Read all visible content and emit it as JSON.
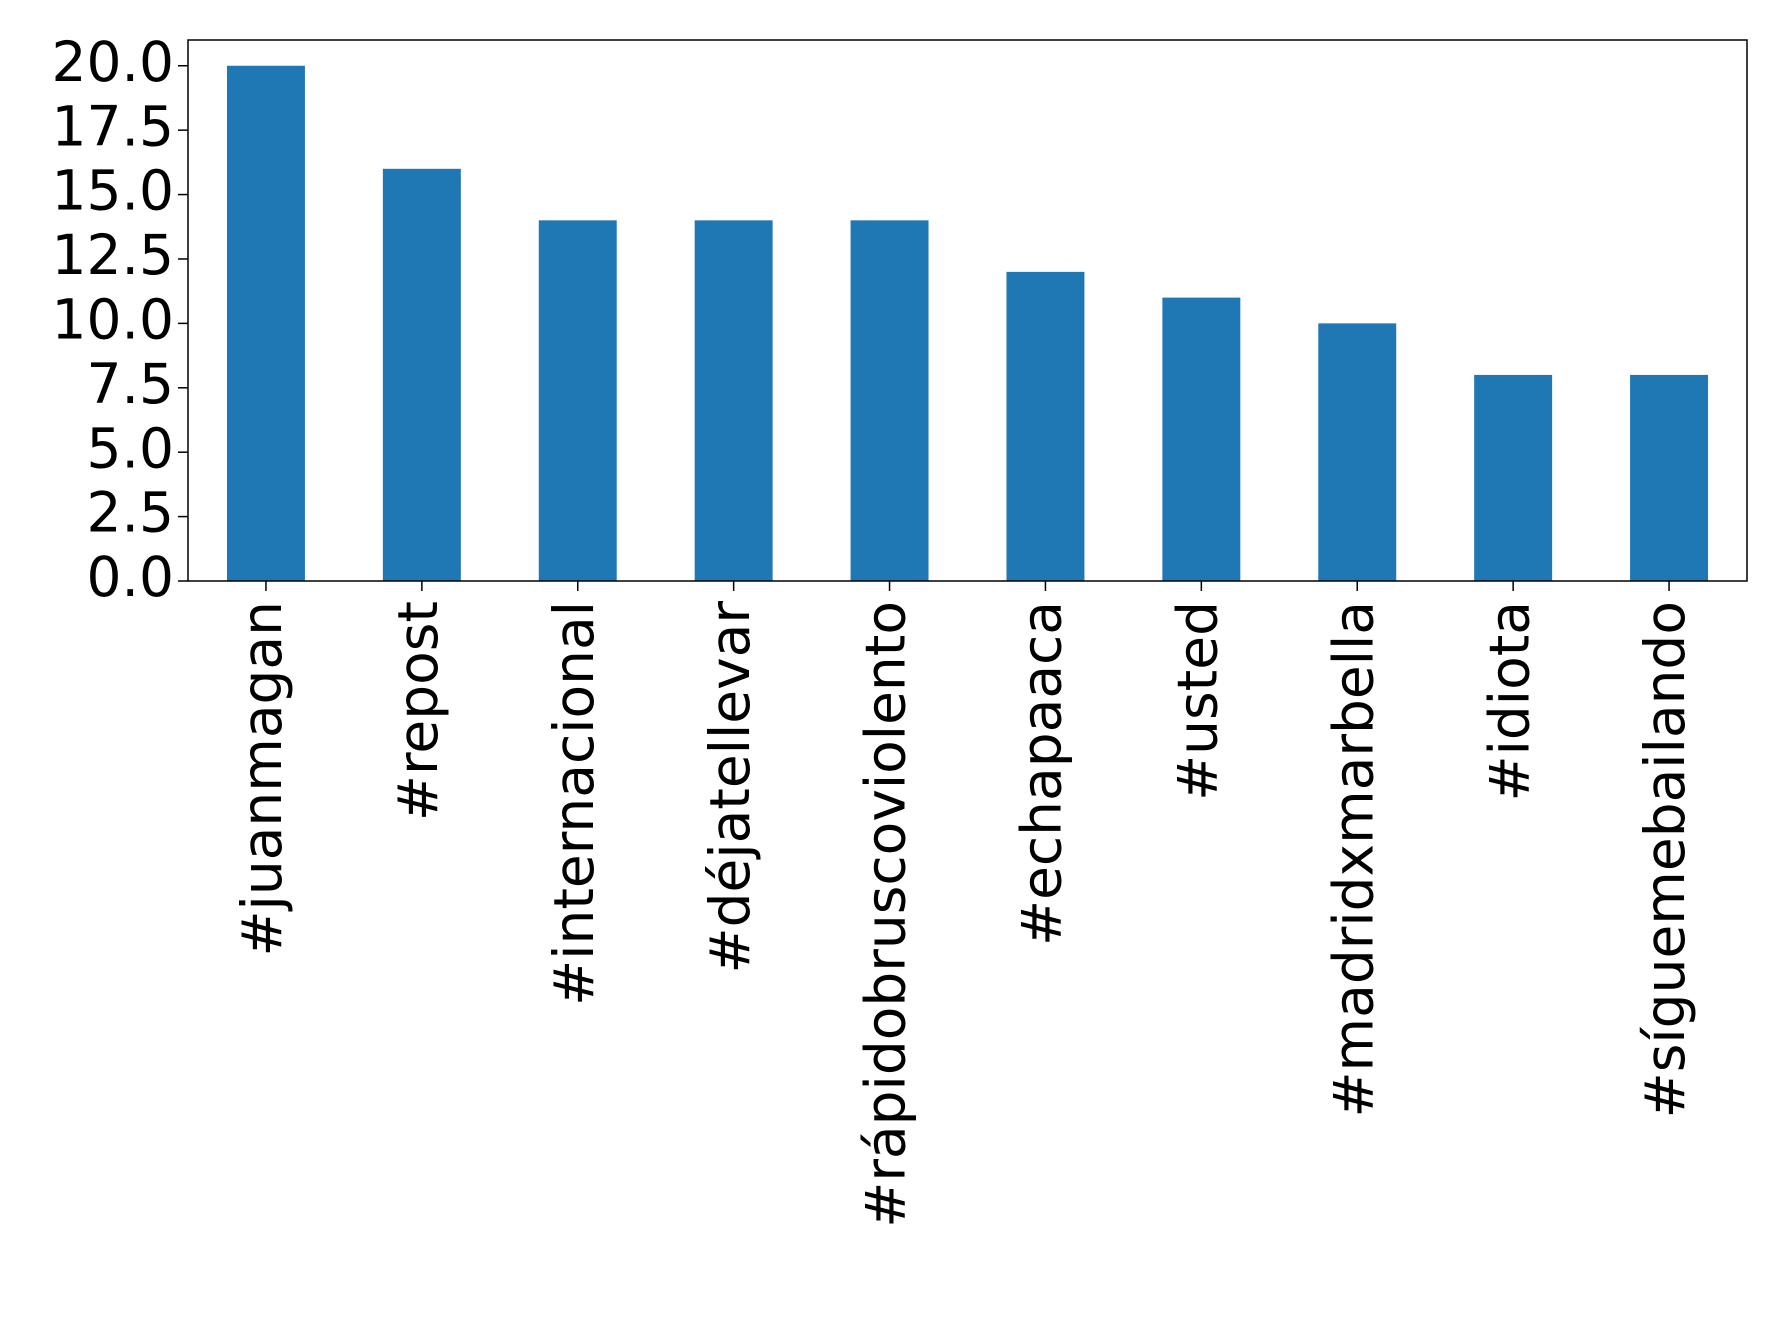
{
  "chart_data": {
    "type": "bar",
    "categories": [
      "#juanmagan",
      "#repost",
      "#internacional",
      "#déjatellevar",
      "#rápidobruscoviolento",
      "#echapaaca",
      "#usted",
      "#madridxmarbella",
      "#idiota",
      "#síguemebailando"
    ],
    "values": [
      20,
      16,
      14,
      14,
      14,
      12,
      11,
      10,
      8,
      8
    ],
    "color": "#1f77b4",
    "ylim": [
      0,
      21
    ],
    "yticks": [
      {
        "value": 0,
        "label": "0.0"
      },
      {
        "value": 2.5,
        "label": "2.5"
      },
      {
        "value": 5,
        "label": "5.0"
      },
      {
        "value": 7.5,
        "label": "7.5"
      },
      {
        "value": 10,
        "label": "10.0"
      },
      {
        "value": 12.5,
        "label": "12.5"
      },
      {
        "value": 15,
        "label": "15.0"
      },
      {
        "value": 17.5,
        "label": "17.5"
      },
      {
        "value": 20,
        "label": "20.0"
      }
    ],
    "grid": false
  }
}
